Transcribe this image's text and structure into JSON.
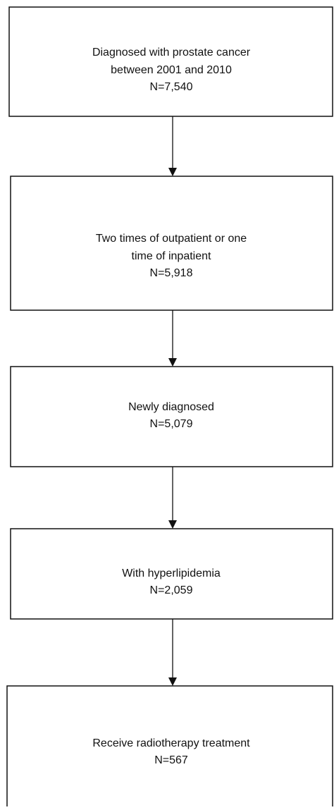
{
  "nodes": [
    {
      "lines": [
        "Diagnosed with prostate cancer",
        "between 2001 and 2010",
        "N=7,540"
      ]
    },
    {
      "lines": [
        "Two times of outpatient or one",
        "time of inpatient",
        "N=5,918"
      ]
    },
    {
      "lines": [
        "Newly diagnosed",
        "N=5,079"
      ]
    },
    {
      "lines": [
        "With hyperlipidemia",
        "N=2,059"
      ]
    },
    {
      "lines": [
        "Receive radiotherapy treatment",
        "N=567"
      ]
    }
  ]
}
